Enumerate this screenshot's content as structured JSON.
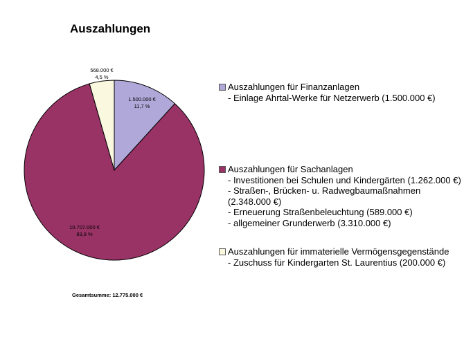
{
  "chart_data": {
    "type": "pie",
    "title": "Auszahlungen",
    "total_label": "Gesamtsumme: 12.775.000 €",
    "slices": [
      {
        "name": "Auszahlungen für Finanzanlagen",
        "value": 1500000,
        "percent": 11.7,
        "value_label": "1.500.000 €",
        "percent_label": "11,7 %",
        "color": "#b0a8d8"
      },
      {
        "name": "Auszahlungen für Sachanlagen",
        "value": 10707000,
        "percent": 83.8,
        "value_label": "10.707.000 €",
        "percent_label": "83,8 %",
        "color": "#993366"
      },
      {
        "name": "Auszahlungen für immaterielle Vermögensgegenstände",
        "value": 568000,
        "percent": 4.5,
        "value_label": "568.000 €",
        "percent_label": "4,5 %",
        "color": "#fbf8e0"
      }
    ]
  },
  "legend": [
    {
      "title": "Auszahlungen für Finanzanlagen",
      "color": "#b0a8d8",
      "items": [
        "- Einlage Ahrtal-Werke für Netzerwerb (1.500.000 €)"
      ]
    },
    {
      "title": "Auszahlungen für Sachanlagen",
      "color": "#993366",
      "items": [
        "- Investitionen bei Schulen und Kindergärten (1.262.000 €)",
        "- Straßen-, Brücken- u. Radwegbaumaßnahmen",
        "(2.348.000 €)",
        "- Erneuerung Straßenbeleuchtung (589.000 €)",
        "- allgemeiner Grunderwerb (3.310.000 €)"
      ]
    },
    {
      "title": "Auszahlungen für immaterielle Vermögensgegenstände",
      "color": "#fbf8e0",
      "items": [
        "- Zuschuss für Kindergarten St. Laurentius (200.000 €)"
      ]
    }
  ]
}
